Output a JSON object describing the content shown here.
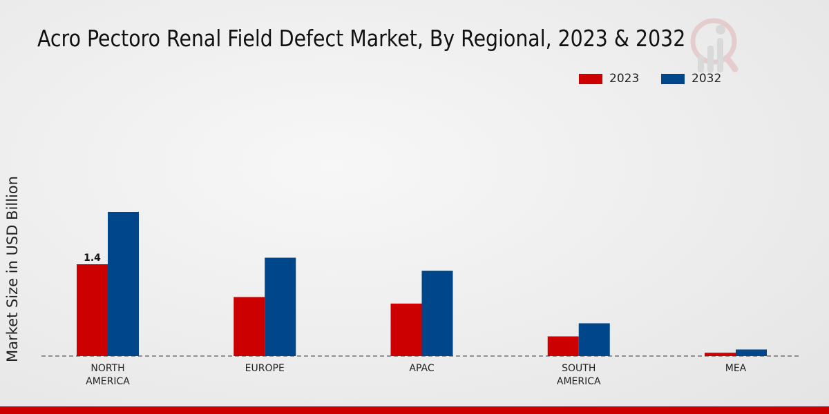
{
  "chart_data": {
    "type": "bar",
    "title": "Acro Pectoro Renal Field Defect Market, By Regional, 2023 & 2032",
    "xlabel": "",
    "ylabel": "Market Size in USD Billion",
    "categories": [
      "NORTH AMERICA",
      "EUROPE",
      "APAC",
      "SOUTH AMERICA",
      "MEA"
    ],
    "category_lines": [
      [
        "NORTH",
        "AMERICA"
      ],
      [
        "EUROPE"
      ],
      [
        "APAC"
      ],
      [
        "SOUTH",
        "AMERICA"
      ],
      [
        "MEA"
      ]
    ],
    "series": [
      {
        "name": "2023",
        "color": "#cc0000",
        "values": [
          1.4,
          0.9,
          0.8,
          0.3,
          0.05
        ]
      },
      {
        "name": "2032",
        "color": "#00468b",
        "values": [
          2.2,
          1.5,
          1.3,
          0.5,
          0.1
        ]
      }
    ],
    "data_labels": [
      {
        "series": "2023",
        "category": "NORTH AMERICA",
        "text": "1.4"
      }
    ],
    "ylim": [
      0,
      2.6
    ],
    "grid": false,
    "legend_position": "top-right"
  }
}
